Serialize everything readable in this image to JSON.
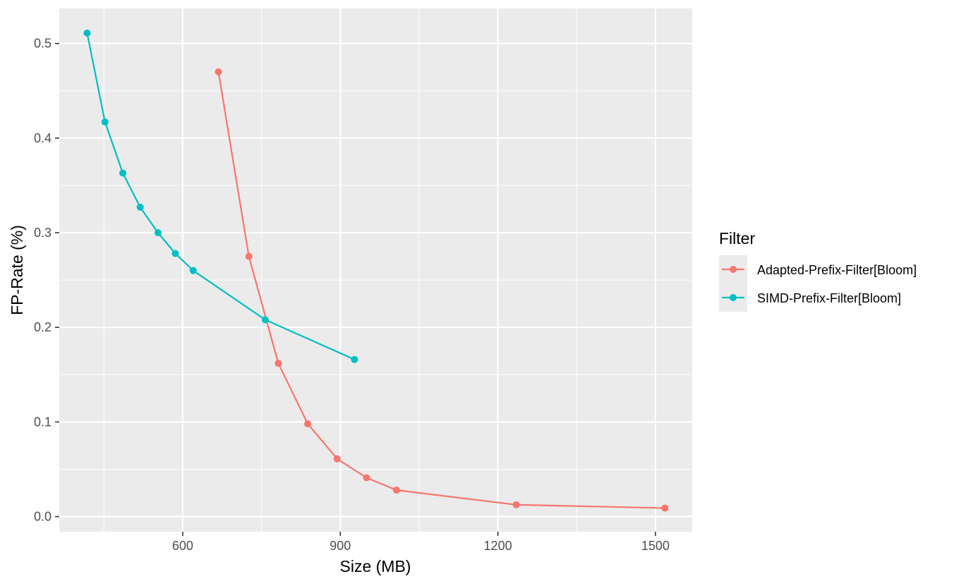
{
  "chart_data": {
    "type": "line",
    "xlabel": "Size (MB)",
    "ylabel": "FP-Rate (%)",
    "xlim": [
      365,
      1570
    ],
    "ylim": [
      -0.016,
      0.537
    ],
    "x_ticks": [
      600,
      900,
      1200,
      1500
    ],
    "x_tick_labels": [
      "600",
      "900",
      "1200",
      "1500"
    ],
    "y_ticks": [
      0.0,
      0.1,
      0.2,
      0.3,
      0.4,
      0.5
    ],
    "y_tick_labels": [
      "0.0",
      "0.1",
      "0.2",
      "0.3",
      "0.4",
      "0.5"
    ],
    "grid": true,
    "legend_placement": "right",
    "legend": {
      "title": "Filter"
    },
    "series": [
      {
        "name": "Adapted-Prefix-Filter[Bloom]",
        "color": "#F8766D",
        "x": [
          668,
          726,
          782,
          838,
          894,
          950,
          1007,
          1235,
          1518
        ],
        "y": [
          0.47,
          0.275,
          0.162,
          0.098,
          0.061,
          0.041,
          0.028,
          0.0125,
          0.009
        ]
      },
      {
        "name": "SIMD-Prefix-Filter[Bloom]",
        "color": "#00BFC4",
        "x": [
          418,
          452,
          486,
          519,
          553,
          586,
          620,
          757,
          927
        ],
        "y": [
          0.511,
          0.417,
          0.363,
          0.327,
          0.3,
          0.278,
          0.26,
          0.208,
          0.166
        ]
      }
    ]
  }
}
